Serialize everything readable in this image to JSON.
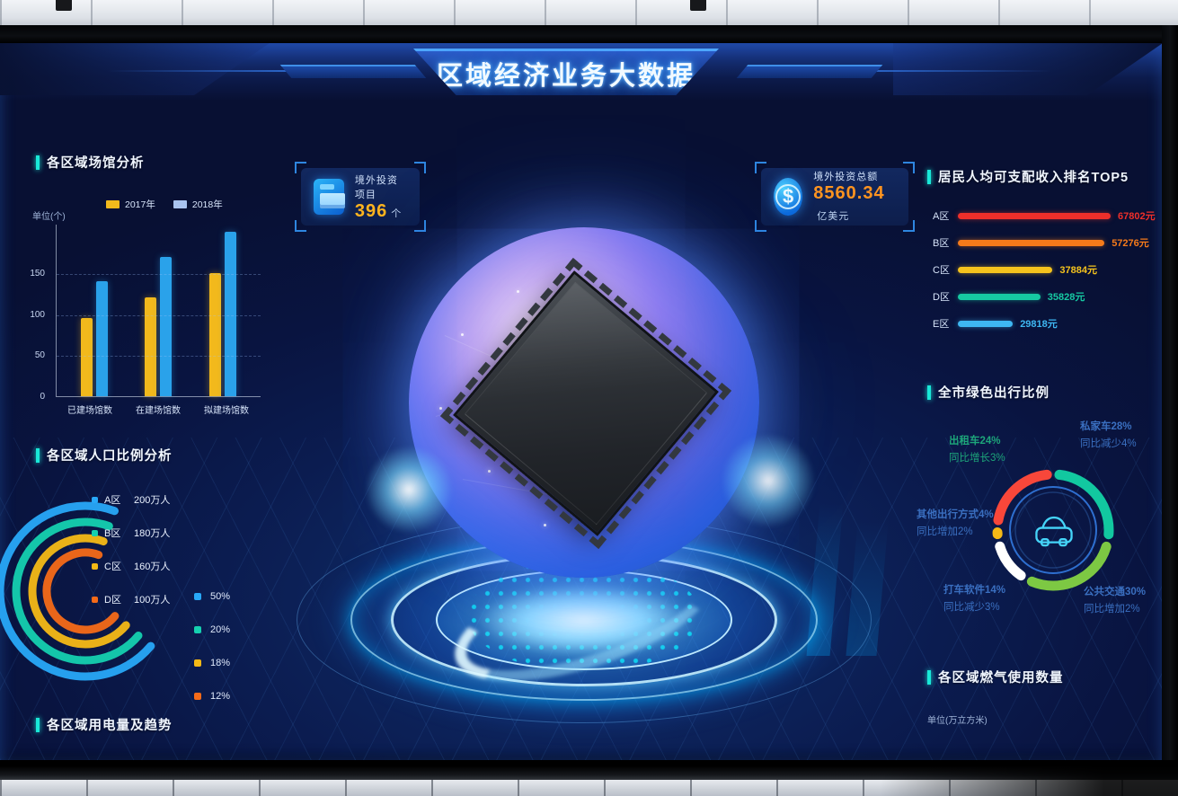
{
  "header": {
    "title": "区域经济业务大数据"
  },
  "badges": [
    {
      "icon": "folder-icon",
      "label": "境外投资项目",
      "value": "396",
      "unit": "个",
      "value_color": "#ffb41e"
    },
    {
      "icon": "dollar-coin-icon",
      "label": "境外投资总额",
      "value": "8560.34",
      "unit": "亿美元",
      "value_color": "#ff9420"
    }
  ],
  "panels": {
    "venues": {
      "title": "各区域场馆分析",
      "unit_label": "单位(个)"
    },
    "population": {
      "title": "各区域人口比例分析"
    },
    "electricity": {
      "title": "各区域用电量及趋势"
    },
    "income": {
      "title": "居民人均可支配收入排名TOP5"
    },
    "green_travel": {
      "title": "全市绿色出行比例"
    },
    "gas": {
      "title": "各区域燃气使用数量",
      "unit_label": "单位(万立方米)"
    }
  },
  "chart_data": [
    {
      "id": "venues_bar",
      "type": "bar",
      "title": "各区域场馆分析",
      "unit_label": "单位(个)",
      "categories": [
        "已建场馆数",
        "在建场馆数",
        "拟建场馆数"
      ],
      "series": [
        {
          "name": "2017年",
          "color": "#f2b91c",
          "legend_color": "#f2b91c",
          "values": [
            95,
            120,
            150
          ]
        },
        {
          "name": "2018年",
          "color": "#2aa2ea",
          "legend_color": "#a9c3ef",
          "values": [
            140,
            170,
            200
          ]
        }
      ],
      "yticks": [
        0,
        50,
        100,
        150
      ],
      "ylim": [
        0,
        210
      ],
      "grid": "dashed"
    },
    {
      "id": "population_radial",
      "type": "radial-arc",
      "title": "各区域人口比例分析",
      "items": [
        {
          "label": "A区",
          "value_label": "200万人",
          "percent_label": "50%",
          "color": "#28a8f8"
        },
        {
          "label": "B区",
          "value_label": "180万人",
          "percent_label": "20%",
          "color": "#15d0b0"
        },
        {
          "label": "C区",
          "value_label": "160万人",
          "percent_label": "18%",
          "color": "#f5b916"
        },
        {
          "label": "D区",
          "value_label": "100万人",
          "percent_label": "12%",
          "color": "#f56a18"
        }
      ]
    },
    {
      "id": "income_top5",
      "type": "bar-horizontal",
      "title": "居民人均可支配收入排名TOP5",
      "items": [
        {
          "label": "A区",
          "value": 67802,
          "value_label": "67802元",
          "color": "#ee2f2a",
          "width_pct": 100
        },
        {
          "label": "B区",
          "value": 57276,
          "value_label": "57276元",
          "color": "#f57a1a",
          "width_pct": 96
        },
        {
          "label": "C区",
          "value": 37884,
          "value_label": "37884元",
          "color": "#f5c31d",
          "width_pct": 62
        },
        {
          "label": "D区",
          "value": 35828,
          "value_label": "35828元",
          "color": "#16c9a2",
          "width_pct": 54
        },
        {
          "label": "E区",
          "value": 29818,
          "value_label": "29818元",
          "color": "#3eb7f2",
          "width_pct": 36
        }
      ]
    },
    {
      "id": "green_travel_pie",
      "type": "pie",
      "title": "全市绿色出行比例",
      "center_icon": "car-icon",
      "segments": [
        {
          "label": "私家车",
          "percent": 28,
          "yoy": "同比减少4%",
          "color": "#12c8a0",
          "label_color": "#3a6fc0"
        },
        {
          "label": "公共交通",
          "percent": 30,
          "yoy": "同比增加2%",
          "color": "#7dc843",
          "label_color": "#3a6fc0"
        },
        {
          "label": "打车软件",
          "percent": 14,
          "yoy": "同比减少3%",
          "color": "#ffffff",
          "label_color": "#3a6fc0"
        },
        {
          "label": "其他出行方式",
          "percent": 4,
          "yoy": "同比增加2%",
          "color": "#f5b916",
          "label_color": "#3a6fc0"
        },
        {
          "label": "出租车",
          "percent": 24,
          "yoy": "同比增长3%",
          "color": "#f8473a",
          "label_color": "#1da57a"
        }
      ]
    }
  ]
}
